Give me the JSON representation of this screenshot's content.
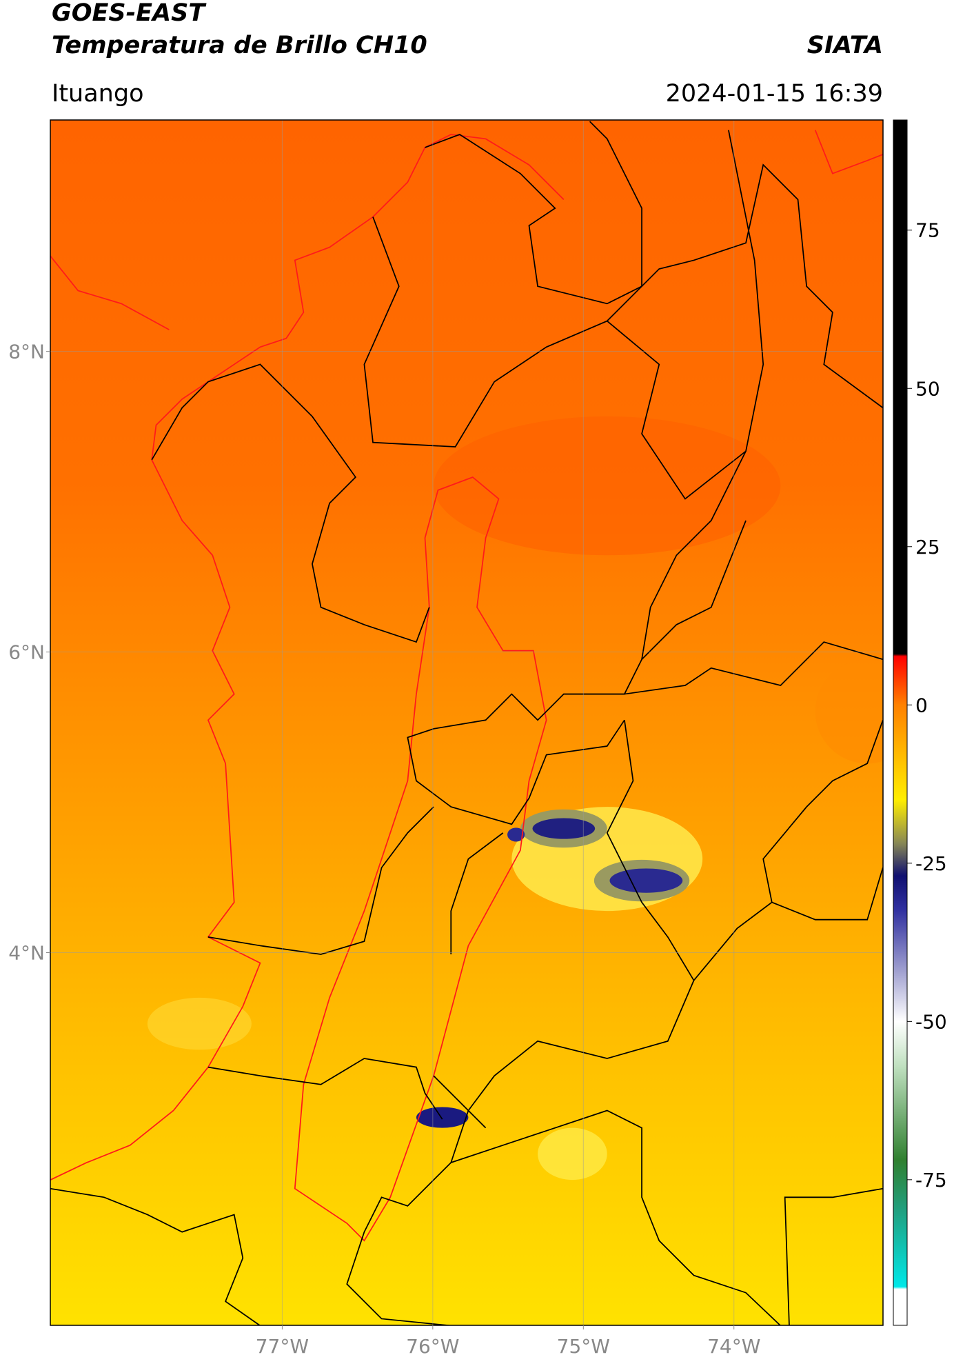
{
  "header": {
    "title": "GOES-EAST",
    "subtitle": "Temperatura de Brillo CH10",
    "source": "SIATA",
    "location": "Ituango",
    "timestamp": "2024-01-15 16:39"
  },
  "map": {
    "xlim": [
      -78.54,
      -73.01
    ],
    "ylim": [
      1.52,
      9.54
    ],
    "xticks": [
      {
        "value": -77,
        "label": "77°W"
      },
      {
        "value": -76,
        "label": "76°W"
      },
      {
        "value": -75,
        "label": "75°W"
      },
      {
        "value": -74,
        "label": "74°W"
      }
    ],
    "yticks": [
      {
        "value": 8,
        "label": "8°N"
      },
      {
        "value": 6,
        "label": "6°N"
      },
      {
        "value": 4,
        "label": "4°N"
      }
    ],
    "grid": true
  },
  "colorbar": {
    "clim": [
      -98,
      92.4
    ],
    "ticks": [
      75,
      50,
      25,
      0,
      -25,
      -50,
      -75
    ]
  }
}
